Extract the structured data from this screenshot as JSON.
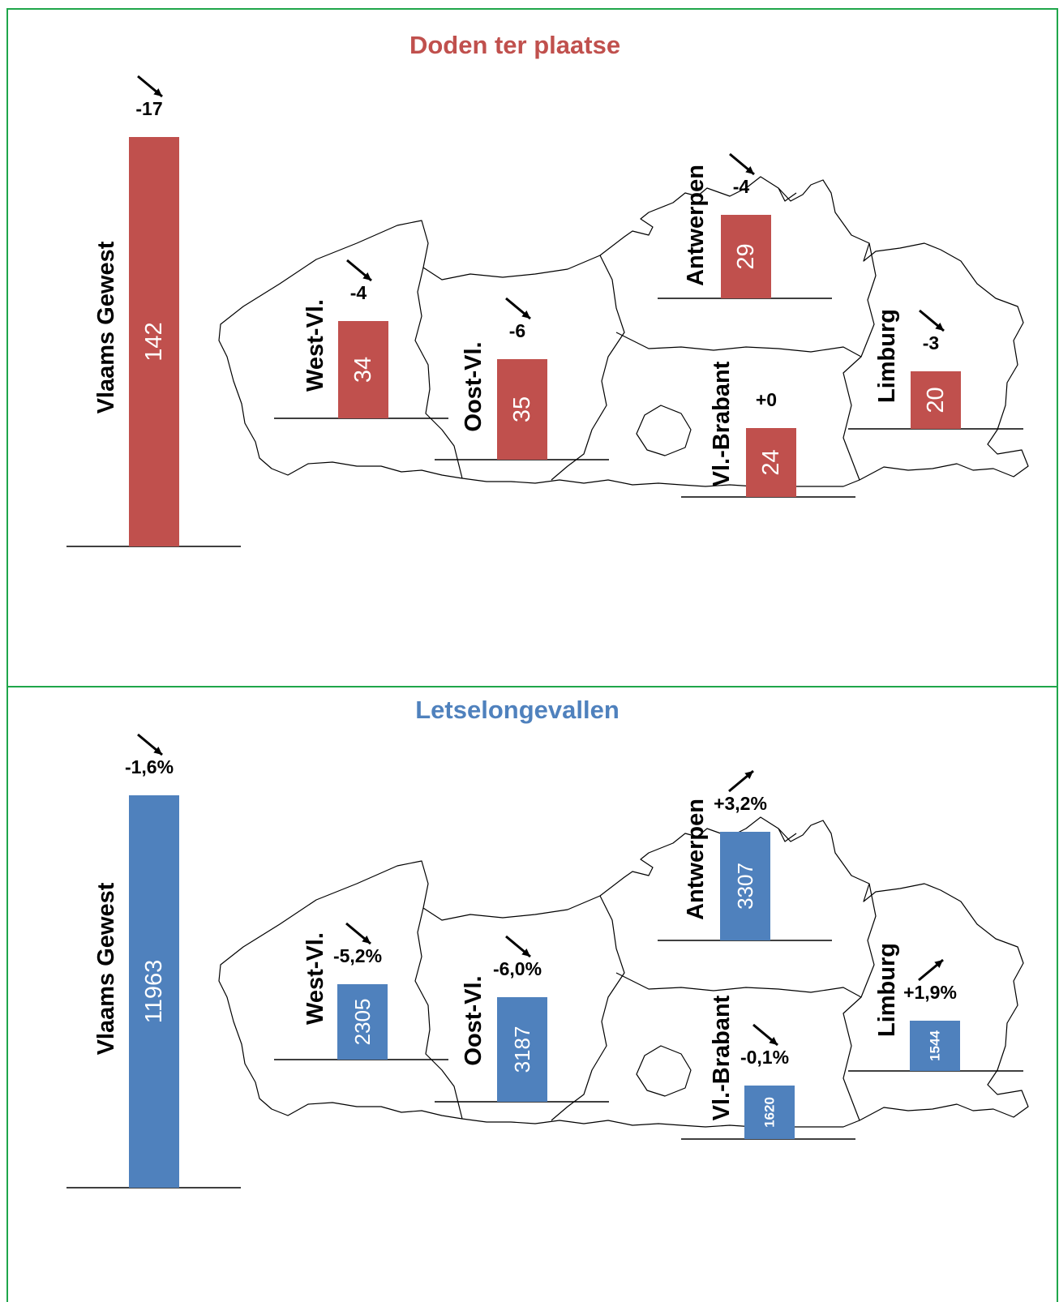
{
  "chart_data": [
    {
      "type": "bar",
      "title": "Doden ter plaatse",
      "color": "#c0504d",
      "categories": [
        "Vlaams Gewest",
        "West-Vl.",
        "Oost-Vl.",
        "Antwerpen",
        "Vl.-Brabant",
        "Limburg"
      ],
      "values": [
        142,
        34,
        35,
        29,
        24,
        20
      ],
      "changes": [
        "-17",
        "-4",
        "-6",
        "-4",
        "+0",
        "-3"
      ],
      "trend": [
        "down",
        "down",
        "down",
        "down",
        "none",
        "down"
      ]
    },
    {
      "type": "bar",
      "title": "Letselongevallen",
      "color": "#4f81bd",
      "categories": [
        "Vlaams Gewest",
        "West-Vl.",
        "Oost-Vl.",
        "Antwerpen",
        "Vl.-Brabant",
        "Limburg"
      ],
      "values": [
        11963,
        2305,
        3187,
        3307,
        1620,
        1544
      ],
      "changes": [
        "-1,6%",
        "-5,2%",
        "-6,0%",
        "+3,2%",
        "-0,1%",
        "+1,9%"
      ],
      "trend": [
        "down",
        "down",
        "down",
        "up",
        "down",
        "up"
      ]
    }
  ],
  "colors": {
    "frame": "#1fa64a",
    "outline": "#000000"
  }
}
